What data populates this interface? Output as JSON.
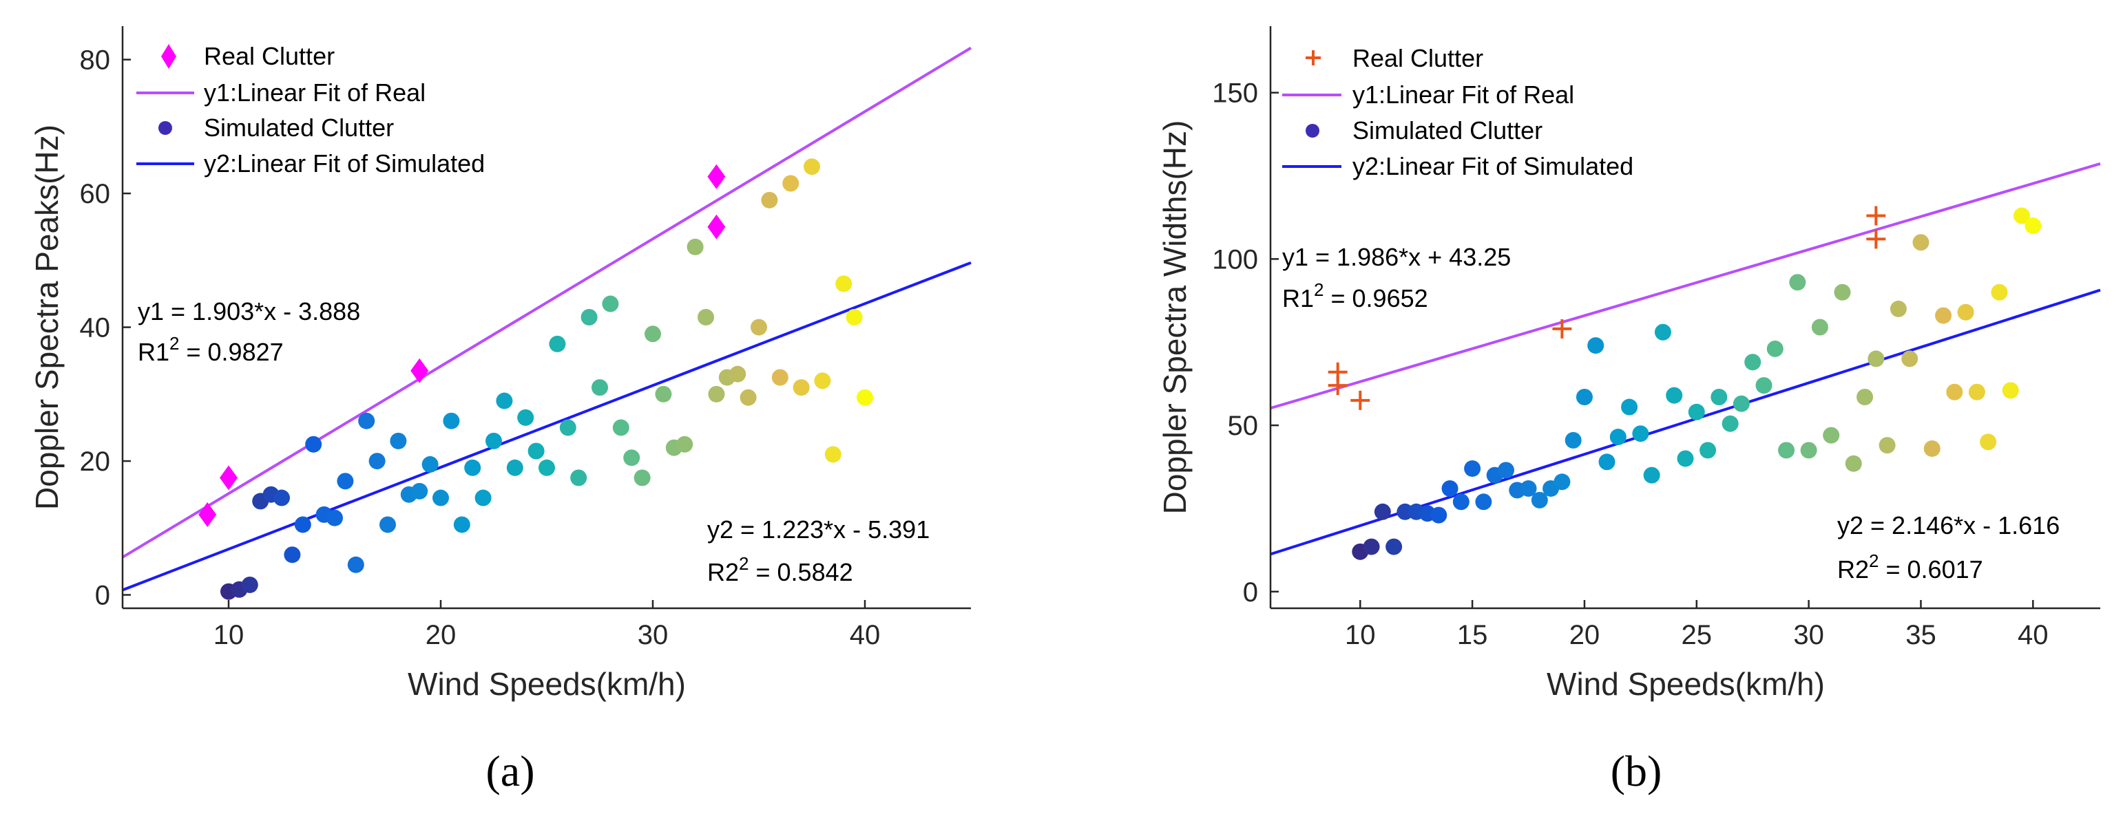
{
  "chart_data": [
    {
      "type": "scatter",
      "caption": "(a)",
      "xlabel": "Wind Speeds(km/h)",
      "ylabel": "Doppler Spectra Peaks(Hz)",
      "xlim": [
        5,
        45
      ],
      "ylim": [
        -2,
        85
      ],
      "xticks": [
        10,
        20,
        30,
        40
      ],
      "yticks": [
        0,
        20,
        40,
        60,
        80
      ],
      "grid": false,
      "legend_position": "top-left",
      "series": [
        {
          "name": "Real Clutter",
          "kind": "points",
          "marker": "diamond",
          "color": "#ff00ff",
          "x": [
            9,
            10,
            19,
            33,
            33
          ],
          "y": [
            12,
            17.5,
            33.5,
            55,
            62.5
          ]
        },
        {
          "name": "y1:Linear Fit of Real",
          "kind": "line",
          "color": "#b84dff",
          "slope": 1.903,
          "intercept": -3.888
        },
        {
          "name": "Simulated Clutter",
          "kind": "points",
          "marker": "circle",
          "colormap": "parula",
          "x": [
            10,
            10.5,
            11,
            11.5,
            12,
            12.5,
            13,
            13.5,
            14,
            14.5,
            15,
            15.5,
            16,
            16.5,
            17,
            17.5,
            18,
            18.5,
            19,
            19.5,
            20,
            20.5,
            21,
            21.5,
            22,
            22.5,
            23,
            23.5,
            24,
            24.5,
            25,
            25.5,
            26,
            26.5,
            27,
            27.5,
            28,
            28.5,
            29,
            29.5,
            30,
            30.5,
            31,
            31.5,
            32,
            32.5,
            33,
            33.5,
            34,
            34.5,
            35,
            35.5,
            36,
            36.5,
            37,
            37.5,
            38,
            38.5,
            39,
            39.5,
            40
          ],
          "y": [
            0.5,
            0.8,
            1.5,
            14,
            15,
            14.5,
            6,
            10.5,
            22.5,
            12,
            11.5,
            17,
            4.5,
            26,
            20,
            10.5,
            23,
            15,
            15.5,
            19.5,
            14.5,
            26,
            10.5,
            19,
            14.5,
            23,
            29,
            19,
            26.5,
            21.5,
            19,
            37.5,
            25,
            17.5,
            41.5,
            31,
            43.5,
            25,
            20.5,
            17.5,
            39,
            30,
            22,
            22.5,
            52,
            41.5,
            30,
            32.5,
            33,
            29.5,
            40,
            59,
            32.5,
            61.5,
            31,
            64,
            32,
            21,
            46.5,
            41.5,
            29.5
          ]
        },
        {
          "name": "y2:Linear Fit of Simulated",
          "kind": "line",
          "color": "#1a1aff",
          "slope": 1.223,
          "intercept": -5.391
        }
      ],
      "annotations": [
        {
          "eq": "y1 = 1.903*x - 3.888",
          "r_base": "R1",
          "r_sup": "2",
          "r_val": " = 0.9827"
        },
        {
          "eq": "y2 = 1.223*x - 5.391",
          "r_base": "R2",
          "r_sup": "2",
          "r_val": " = 0.5842"
        }
      ]
    },
    {
      "type": "scatter",
      "caption": "(b)",
      "xlabel": "Wind Speeds(km/h)",
      "ylabel": "Doppler Spectra Widths(Hz)",
      "xlim": [
        6,
        43
      ],
      "ylim": [
        -5,
        170
      ],
      "xticks": [
        10,
        15,
        20,
        25,
        30,
        35,
        40
      ],
      "yticks": [
        0,
        50,
        100,
        150
      ],
      "grid": false,
      "legend_position": "top-left",
      "series": [
        {
          "name": "Real Clutter",
          "kind": "points",
          "marker": "plus",
          "color": "#e8551a",
          "x": [
            9,
            9,
            10,
            19,
            33,
            33
          ],
          "y": [
            62,
            66,
            57.5,
            79,
            106,
            113
          ]
        },
        {
          "name": "y1:Linear Fit of Real",
          "kind": "line",
          "color": "#b84dff",
          "slope": 1.986,
          "intercept": 43.25
        },
        {
          "name": "Simulated Clutter",
          "kind": "points",
          "marker": "circle",
          "colormap": "parula",
          "x": [
            10,
            10.5,
            11,
            11.5,
            12,
            12.5,
            13,
            13.5,
            14,
            14.5,
            15,
            15.5,
            16,
            16.5,
            17,
            17.5,
            18,
            18.5,
            19,
            19.5,
            20,
            20.5,
            21,
            21.5,
            22,
            22.5,
            23,
            23.5,
            24,
            24.5,
            25,
            25.5,
            26,
            26.5,
            27,
            27.5,
            28,
            28.5,
            29,
            29.5,
            30,
            30.5,
            31,
            31.5,
            32,
            32.5,
            33,
            33.5,
            34,
            34.5,
            35,
            35.5,
            36,
            36.5,
            37,
            37.5,
            38,
            38.5,
            39,
            39.5,
            40
          ],
          "y": [
            12,
            13.5,
            24,
            13.5,
            24,
            24,
            23.5,
            23,
            31,
            27,
            37,
            27,
            35,
            36.5,
            30.5,
            31,
            27.5,
            31,
            33,
            45.5,
            58.5,
            74,
            39,
            46.5,
            55.5,
            47.5,
            35,
            78,
            59,
            40,
            54,
            42.5,
            58.5,
            50.5,
            56.5,
            69,
            62,
            73,
            42.5,
            93,
            42.5,
            79.5,
            47,
            90,
            38.5,
            58.5,
            70,
            44,
            85,
            70,
            105,
            43,
            83,
            60,
            84,
            60,
            45,
            90,
            60.5,
            113,
            110
          ]
        },
        {
          "name": "y2:Linear Fit of Simulated",
          "kind": "line",
          "color": "#1a1aff",
          "slope": 2.146,
          "intercept": -1.616
        }
      ],
      "annotations": [
        {
          "eq": "y1 = 1.986*x + 43.25",
          "r_base": "R1",
          "r_sup": "2",
          "r_val": " = 0.9652"
        },
        {
          "eq": "y2 = 2.146*x - 1.616",
          "r_base": "R2",
          "r_sup": "2",
          "r_val": " = 0.6017"
        }
      ]
    }
  ]
}
